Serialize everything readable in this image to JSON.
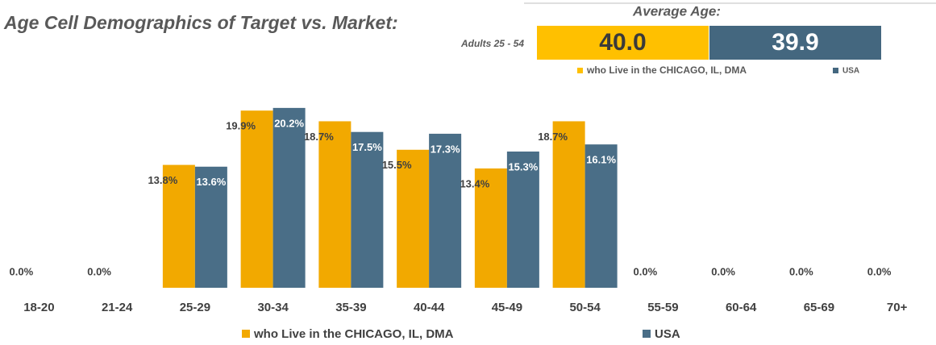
{
  "chart_data": {
    "type": "bar",
    "title": "Age Cell Demographics of Target vs. Market:",
    "average_age": {
      "title": "Average Age:",
      "subtitle": "Adults 25 - 54",
      "values": [
        40.0,
        39.9
      ],
      "value_labels": [
        "40.0",
        "39.9"
      ],
      "colors": [
        "#ffc000",
        "#44677f"
      ],
      "legend": [
        "who Live in the CHICAGO, IL, DMA",
        "USA"
      ]
    },
    "categories": [
      "18-20",
      "21-24",
      "25-29",
      "30-34",
      "35-39",
      "40-44",
      "45-49",
      "50-54",
      "55-59",
      "60-64",
      "65-69",
      "70+"
    ],
    "series": [
      {
        "name": "who Live in the CHICAGO, IL, DMA",
        "color": "#f2a900",
        "values": [
          0,
          0,
          13.8,
          19.9,
          18.7,
          15.5,
          13.4,
          18.7,
          0,
          0,
          0,
          0
        ],
        "value_labels": [
          "0.0%",
          "0.0%",
          "13.8%",
          "19.9%",
          "18.7%",
          "15.5%",
          "13.4%",
          "18.7%",
          "0.0%",
          "0.0%",
          "0.0%",
          "0.0%"
        ]
      },
      {
        "name": "USA",
        "color": "#4a6e87",
        "values": [
          0,
          0,
          13.6,
          20.2,
          17.5,
          17.3,
          15.3,
          16.1,
          0,
          0,
          0,
          0
        ],
        "value_labels": [
          null,
          null,
          "13.6%",
          "20.2%",
          "17.5%",
          "17.3%",
          "15.3%",
          "16.1%",
          null,
          null,
          null,
          null
        ]
      }
    ],
    "ylim": [
      0,
      22
    ],
    "legend": "bottom"
  }
}
